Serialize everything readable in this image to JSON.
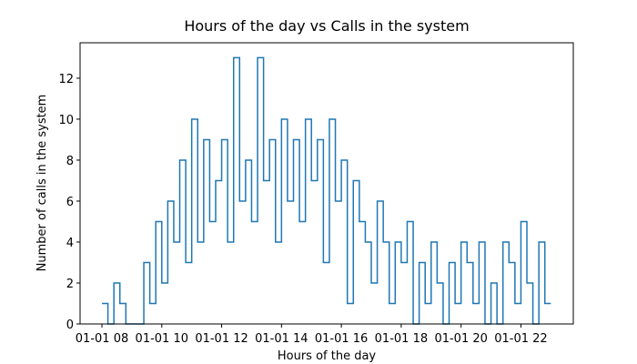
{
  "chart_data": {
    "type": "line",
    "step": true,
    "title": "Hours of the day vs Calls in the system",
    "x_label": "Hours of the day",
    "y_label": "Number of calls in the system",
    "color": "#1f77b4",
    "x": [
      8,
      8.2,
      8.4,
      8.6,
      8.8,
      9,
      9.2,
      9.4,
      9.6,
      9.8,
      10,
      10.2,
      10.4,
      10.6,
      10.8,
      11,
      11.2,
      11.4,
      11.6,
      11.8,
      12,
      12.2,
      12.4,
      12.6,
      12.8,
      13,
      13.2,
      13.4,
      13.6,
      13.8,
      14,
      14.2,
      14.4,
      14.6,
      14.8,
      15,
      15.2,
      15.4,
      15.6,
      15.8,
      16,
      16.2,
      16.4,
      16.6,
      16.8,
      17,
      17.2,
      17.4,
      17.6,
      17.8,
      18,
      18.2,
      18.4,
      18.6,
      18.8,
      19,
      19.2,
      19.4,
      19.6,
      19.8,
      20,
      20.2,
      20.4,
      20.6,
      20.8,
      21,
      21.2,
      21.4,
      21.6,
      21.8,
      22,
      22.2,
      22.4,
      22.6,
      22.8,
      23
    ],
    "values": [
      1,
      0,
      2,
      1,
      0,
      0,
      0,
      3,
      1,
      5,
      2,
      6,
      4,
      8,
      3,
      10,
      4,
      9,
      5,
      7,
      9,
      4,
      13,
      6,
      8,
      5,
      13,
      7,
      9,
      4,
      10,
      6,
      9,
      5,
      10,
      7,
      9,
      3,
      10,
      6,
      8,
      1,
      7,
      5,
      4,
      2,
      6,
      4,
      1,
      4,
      3,
      5,
      0,
      3,
      1,
      4,
      2,
      0,
      3,
      1,
      4,
      3,
      1,
      4,
      0,
      2,
      0,
      4,
      3,
      1,
      5,
      2,
      0,
      4,
      1,
      1
    ],
    "xlim": [
      7.27,
      23.75
    ],
    "ylim": [
      0,
      13.73
    ],
    "xticks": [
      {
        "value": 8,
        "label": "01-01 08"
      },
      {
        "value": 10,
        "label": "01-01 10"
      },
      {
        "value": 12,
        "label": "01-01 12"
      },
      {
        "value": 14,
        "label": "01-01 14"
      },
      {
        "value": 16,
        "label": "01-01 16"
      },
      {
        "value": 18,
        "label": "01-01 18"
      },
      {
        "value": 20,
        "label": "01-01 20"
      },
      {
        "value": 22,
        "label": "01-01 22"
      }
    ],
    "yticks": [
      0,
      2,
      4,
      6,
      8,
      10,
      12
    ]
  }
}
